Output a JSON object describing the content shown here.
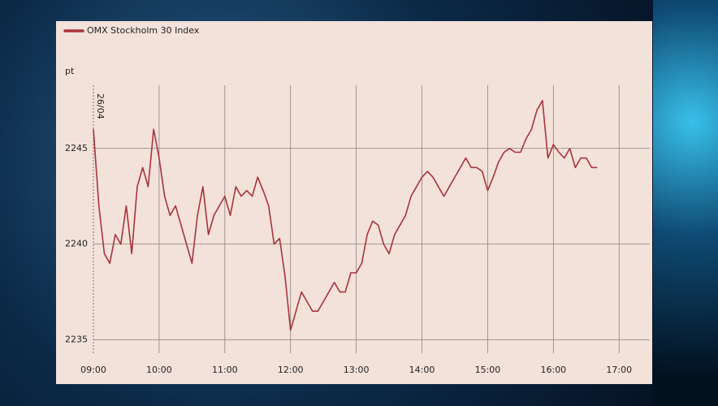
{
  "chart_data": {
    "type": "line",
    "y_label": "pt",
    "annotation": "26/04",
    "xlim": [
      "09:00",
      "17:28"
    ],
    "xticks": [
      "09:00",
      "10:00",
      "11:00",
      "12:00",
      "13:00",
      "14:00",
      "15:00",
      "16:00",
      "17:00"
    ],
    "ylim": [
      2234.3,
      2248.3
    ],
    "yticks": [
      2235,
      2240,
      2245
    ],
    "grid": true,
    "legend": "top-left",
    "x": [
      "09:00",
      "09:05",
      "09:10",
      "09:15",
      "09:20",
      "09:25",
      "09:30",
      "09:35",
      "09:40",
      "09:45",
      "09:50",
      "09:55",
      "10:00",
      "10:05",
      "10:10",
      "10:15",
      "10:20",
      "10:25",
      "10:30",
      "10:35",
      "10:40",
      "10:45",
      "10:50",
      "10:55",
      "11:00",
      "11:05",
      "11:10",
      "11:15",
      "11:20",
      "11:25",
      "11:30",
      "11:35",
      "11:40",
      "11:45",
      "11:50",
      "11:55",
      "12:00",
      "12:05",
      "12:10",
      "12:15",
      "12:20",
      "12:25",
      "12:30",
      "12:35",
      "12:40",
      "12:45",
      "12:50",
      "12:55",
      "13:00",
      "13:05",
      "13:10",
      "13:15",
      "13:20",
      "13:25",
      "13:30",
      "13:35",
      "13:40",
      "13:45",
      "13:50",
      "13:55",
      "14:00",
      "14:05",
      "14:10",
      "14:15",
      "14:20",
      "14:25",
      "14:30",
      "14:35",
      "14:40",
      "14:45",
      "14:50",
      "14:55",
      "15:00",
      "15:05",
      "15:10",
      "15:15",
      "15:20",
      "15:25",
      "15:30",
      "15:35",
      "15:40",
      "15:45",
      "15:50",
      "15:55",
      "16:00",
      "16:05",
      "16:10",
      "16:15",
      "16:20",
      "16:25",
      "16:30",
      "16:35",
      "16:40"
    ],
    "series": [
      {
        "name": "OMX Stockholm 30 Index",
        "color": "#a8333c",
        "values": [
          2246,
          2242,
          2239.5,
          2239,
          2240.5,
          2240,
          2242,
          2239.5,
          2243,
          2244,
          2243,
          2246,
          2244.5,
          2242.5,
          2241.5,
          2242,
          2241,
          2240,
          2239,
          2241.5,
          2243,
          2240.5,
          2241.5,
          2242,
          2242.5,
          2241.5,
          2243,
          2242.5,
          2242.8,
          2242.5,
          2243.5,
          2242.8,
          2242,
          2240,
          2240.3,
          2238.3,
          2235.5,
          2236.5,
          2237.5,
          2237,
          2236.5,
          2236.5,
          2237,
          2237.5,
          2238,
          2237.5,
          2237.5,
          2238.5,
          2238.5,
          2239,
          2240.5,
          2241.2,
          2241,
          2240,
          2239.5,
          2240.5,
          2241,
          2241.5,
          2242.5,
          2243,
          2243.5,
          2243.8,
          2243.5,
          2243,
          2242.5,
          2243,
          2243.5,
          2244,
          2244.5,
          2244,
          2244,
          2243.8,
          2242.8,
          2243.5,
          2244.3,
          2244.8,
          2245,
          2244.8,
          2244.8,
          2245.5,
          2246,
          2247,
          2247.5,
          2244.5,
          2245.2,
          2244.8,
          2244.5,
          2245,
          2244,
          2244.5,
          2244.5,
          2244,
          2244
        ]
      }
    ]
  }
}
